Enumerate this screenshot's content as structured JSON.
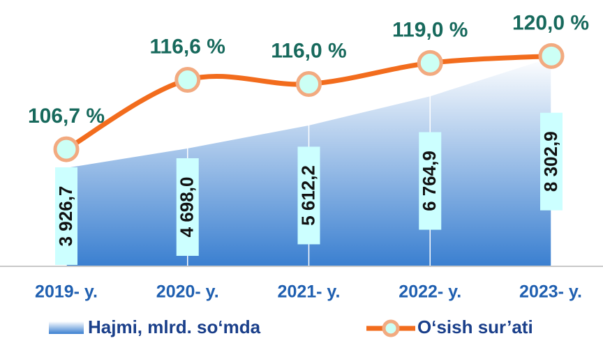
{
  "chart_data": {
    "type": "area_line",
    "categories": [
      "2019- y.",
      "2020- y.",
      "2021- y.",
      "2022- y.",
      "2023- y."
    ],
    "series": [
      {
        "name": "Hajmi, mlrd. so‘mda",
        "type": "area",
        "color": "#3a7fd0",
        "values": [
          3926.7,
          4698.0,
          5612.2,
          6764.9,
          8302.9
        ],
        "value_labels": [
          "3 926,7",
          "4 698,0",
          "5 612,2",
          "6 764,9",
          "8 302,9"
        ]
      },
      {
        "name": "O‘sish sur’ati",
        "type": "line",
        "axis": "y2",
        "color": "#f26c1d",
        "values": [
          106.7,
          116.6,
          116.0,
          119.0,
          120.0
        ],
        "value_labels": [
          "106,7 %",
          "116,6 %",
          "116,0 %",
          "119,0 %",
          "120,0 %"
        ]
      }
    ],
    "ylim": [
      0,
      10000
    ],
    "y2lim": [
      90,
      126
    ]
  }
}
